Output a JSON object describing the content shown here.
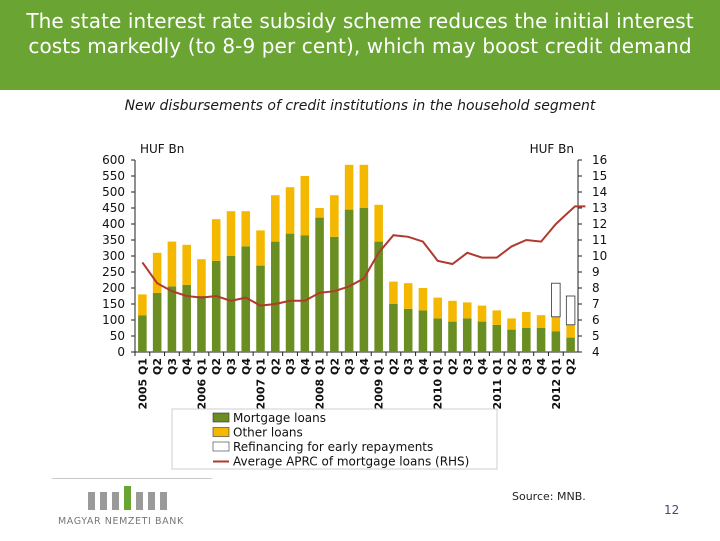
{
  "header": {
    "title": "The state interest rate subsidy scheme reduces the initial interest costs markedly (to 8-9 per cent), which may boost credit demand"
  },
  "chart_data": {
    "type": "bar",
    "title": "New disbursements of credit institutions in the household segment",
    "left_axis_unit": "HUF Bn",
    "right_axis_unit": "HUF Bn",
    "ylim": [
      0,
      600
    ],
    "y_ticks": [
      "0",
      "50",
      "100",
      "150",
      "200",
      "250",
      "300",
      "350",
      "400",
      "450",
      "500",
      "550",
      "600"
    ],
    "y2lim": [
      4,
      16
    ],
    "y2_ticks": [
      "4",
      "5",
      "6",
      "7",
      "8",
      "9",
      "10",
      "11",
      "12",
      "13",
      "14",
      "15",
      "16"
    ],
    "categories": [
      "2005 Q1",
      "Q2",
      "Q3",
      "Q4",
      "2006 Q1",
      "Q2",
      "Q3",
      "Q4",
      "2007 Q1",
      "Q2",
      "Q3",
      "Q4",
      "2008 Q1",
      "Q2",
      "Q3",
      "Q4",
      "2009 Q1",
      "Q2",
      "Q3",
      "Q4",
      "2010 Q1",
      "Q2",
      "Q3",
      "Q4",
      "2011 Q1",
      "Q2",
      "Q3",
      "Q4",
      "2012 Q1",
      "Q2"
    ],
    "stacked": true,
    "series": [
      {
        "name": "Mortgage loans",
        "color": "#6b8e23",
        "values": [
          115,
          185,
          205,
          210,
          175,
          285,
          300,
          330,
          270,
          345,
          370,
          365,
          420,
          360,
          445,
          450,
          345,
          150,
          135,
          130,
          105,
          95,
          105,
          95,
          85,
          70,
          75,
          75,
          65,
          45
        ]
      },
      {
        "name": "Other loans",
        "color": "#f5b800",
        "values": [
          65,
          125,
          140,
          125,
          115,
          130,
          140,
          110,
          110,
          145,
          145,
          185,
          30,
          130,
          140,
          135,
          115,
          70,
          80,
          70,
          65,
          65,
          50,
          50,
          45,
          35,
          50,
          40,
          45,
          40
        ]
      },
      {
        "name": "Refinancing for early repayments",
        "color": "#ffffff",
        "values": [
          0,
          0,
          0,
          0,
          0,
          0,
          0,
          0,
          0,
          0,
          0,
          0,
          0,
          0,
          0,
          0,
          0,
          0,
          0,
          0,
          0,
          0,
          0,
          0,
          0,
          0,
          0,
          0,
          105,
          90
        ]
      }
    ],
    "line_series": {
      "name": "Average APRC of mortgage loans (RHS)",
      "color": "#b03a2e",
      "axis": "right",
      "values": [
        9.6,
        8.3,
        7.8,
        7.5,
        7.4,
        7.5,
        7.2,
        7.4,
        6.9,
        7.0,
        7.2,
        7.2,
        7.7,
        7.8,
        8.1,
        8.6,
        10.2,
        11.3,
        11.2,
        10.9,
        9.7,
        9.5,
        10.2,
        9.9,
        9.9,
        10.6,
        11.0,
        10.9,
        12.0,
        12.6,
        13.1,
        13.1
      ],
      "x_positions": [
        0,
        1,
        2,
        3,
        4,
        5,
        6,
        7,
        8,
        9,
        10,
        11,
        12,
        13,
        14,
        15,
        16,
        17,
        18,
        19,
        20,
        21,
        22,
        23,
        24,
        25,
        26,
        27,
        28,
        28.7,
        29.3,
        30
      ]
    },
    "legend_position": "bottom"
  },
  "footer": {
    "source": "Source: MNB.",
    "page_number": "12",
    "logo_text": "MAGYAR NEMZETI BANK"
  }
}
